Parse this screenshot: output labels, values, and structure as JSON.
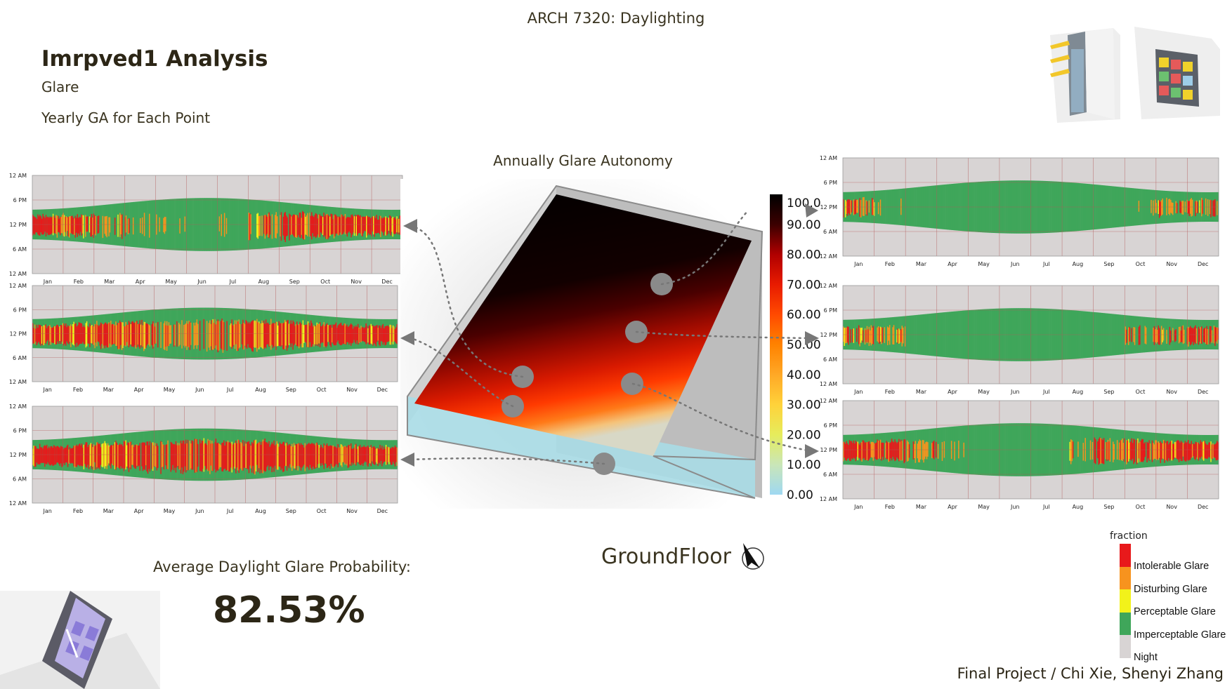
{
  "header": {
    "course": "ARCH 7320: Daylighting",
    "title": "Imrpved1 Analysis",
    "subtitle": "Glare",
    "caption": "Yearly GA for Each Point"
  },
  "center": {
    "title": "Annually Glare Autonomy",
    "colorbar_ticks": [
      "100.0",
      "90.00",
      "80.00",
      "70.00",
      "60.00",
      "50.00",
      "40.00",
      "30.00",
      "20.00",
      "10.00",
      "0.00"
    ],
    "floor_label": "GroundFloor"
  },
  "summary": {
    "label": "Average Daylight Glare Probability:",
    "value": "82.53%"
  },
  "footer": {
    "credits": "Final Project / Chi Xie, Shenyi Zhang"
  },
  "legend": {
    "title": "fraction",
    "items": [
      {
        "label": "Intolerable Glare",
        "color": "#e8191b"
      },
      {
        "label": "Disturbing Glare",
        "color": "#f7931e"
      },
      {
        "label": "Perceptable Glare",
        "color": "#f2f21a"
      },
      {
        "label": "Imperceptable Glare",
        "color": "#3fa65a"
      },
      {
        "label": "Night",
        "color": "#d8d4d4"
      }
    ]
  },
  "icons": {
    "north_arrow": "north-arrow-icon",
    "floor_plan": "floor-plan-thumbnail",
    "building_views": "building-render-thumbnails"
  },
  "chart_data": [
    {
      "type": "heatmap",
      "panel": "left-top",
      "months": [
        "Jan",
        "Feb",
        "Mar",
        "Apr",
        "May",
        "Jun",
        "Jul",
        "Aug",
        "Sep",
        "Oct",
        "Nov",
        "Dec"
      ],
      "y_ticks": [
        "12 AM",
        "6 PM",
        "12 PM",
        "6 AM",
        "12 AM"
      ],
      "categories": [
        "Intolerable Glare",
        "Disturbing Glare",
        "Perceptable Glare",
        "Imperceptable Glare",
        "Night"
      ],
      "monthly_glare_intensity": [
        0.92,
        0.75,
        0.5,
        0.22,
        0.05,
        0.0,
        0.02,
        0.45,
        0.8,
        0.85,
        0.9,
        0.92
      ]
    },
    {
      "type": "heatmap",
      "panel": "left-middle",
      "months": [
        "Jan",
        "Feb",
        "Mar",
        "Apr",
        "May",
        "Jun",
        "Jul",
        "Aug",
        "Sep",
        "Oct",
        "Nov",
        "Dec"
      ],
      "y_ticks": [
        "12 AM",
        "6 PM",
        "12 PM",
        "6 AM",
        "12 AM"
      ],
      "categories": [
        "Intolerable Glare",
        "Disturbing Glare",
        "Perceptable Glare",
        "Imperceptable Glare",
        "Night"
      ],
      "monthly_glare_intensity": [
        0.92,
        0.9,
        0.86,
        0.72,
        0.5,
        0.5,
        0.62,
        0.85,
        0.9,
        0.9,
        0.92,
        0.92
      ]
    },
    {
      "type": "heatmap",
      "panel": "left-bottom",
      "months": [
        "Jan",
        "Feb",
        "Mar",
        "Apr",
        "May",
        "Jun",
        "Jul",
        "Aug",
        "Sep",
        "Oct",
        "Nov",
        "Dec"
      ],
      "y_ticks": [
        "12 AM",
        "6 PM",
        "12 PM",
        "6 AM",
        "12 AM"
      ],
      "categories": [
        "Intolerable Glare",
        "Disturbing Glare",
        "Perceptable Glare",
        "Imperceptable Glare",
        "Night"
      ],
      "monthly_glare_intensity": [
        0.92,
        0.9,
        0.88,
        0.8,
        0.76,
        0.75,
        0.8,
        0.9,
        0.92,
        0.92,
        0.92,
        0.92
      ]
    },
    {
      "type": "heatmap",
      "panel": "right-top",
      "months": [
        "Jan",
        "Feb",
        "Mar",
        "Apr",
        "May",
        "Jun",
        "Jul",
        "Aug",
        "Sep",
        "Oct",
        "Nov",
        "Dec"
      ],
      "y_ticks": [
        "12 AM",
        "6 PM",
        "12 PM",
        "6 AM",
        "12 AM"
      ],
      "categories": [
        "Intolerable Glare",
        "Disturbing Glare",
        "Perceptable Glare",
        "Imperceptable Glare",
        "Night"
      ],
      "monthly_glare_intensity": [
        0.55,
        0.12,
        0.0,
        0.0,
        0.0,
        0.0,
        0.0,
        0.0,
        0.0,
        0.06,
        0.35,
        0.62
      ]
    },
    {
      "type": "heatmap",
      "panel": "right-middle",
      "months": [
        "Jan",
        "Feb",
        "Mar",
        "Apr",
        "May",
        "Jun",
        "Jul",
        "Aug",
        "Sep",
        "Oct",
        "Nov",
        "Dec"
      ],
      "y_ticks": [
        "12 AM",
        "6 PM",
        "12 PM",
        "6 AM",
        "12 AM"
      ],
      "categories": [
        "Intolerable Glare",
        "Disturbing Glare",
        "Perceptable Glare",
        "Imperceptable Glare",
        "Night"
      ],
      "monthly_glare_intensity": [
        0.65,
        0.42,
        0.0,
        0.0,
        0.0,
        0.0,
        0.0,
        0.0,
        0.0,
        0.35,
        0.55,
        0.7
      ]
    },
    {
      "type": "heatmap",
      "panel": "right-bottom",
      "months": [
        "Jan",
        "Feb",
        "Mar",
        "Apr",
        "May",
        "Jun",
        "Jul",
        "Aug",
        "Sep",
        "Oct",
        "Nov",
        "Dec"
      ],
      "y_ticks": [
        "12 AM",
        "6 PM",
        "12 PM",
        "6 AM",
        "12 AM"
      ],
      "categories": [
        "Intolerable Glare",
        "Disturbing Glare",
        "Perceptable Glare",
        "Imperceptable Glare",
        "Night"
      ],
      "monthly_glare_intensity": [
        0.82,
        0.72,
        0.42,
        0.05,
        0.0,
        0.0,
        0.0,
        0.2,
        0.55,
        0.75,
        0.82,
        0.85
      ]
    },
    {
      "type": "heatmap",
      "panel": "center-floor",
      "title": "Annually Glare Autonomy",
      "colorbar_range": [
        0,
        100
      ],
      "description_values_by_row_front_to_back": [
        10,
        40,
        60,
        80,
        90,
        100
      ]
    }
  ]
}
